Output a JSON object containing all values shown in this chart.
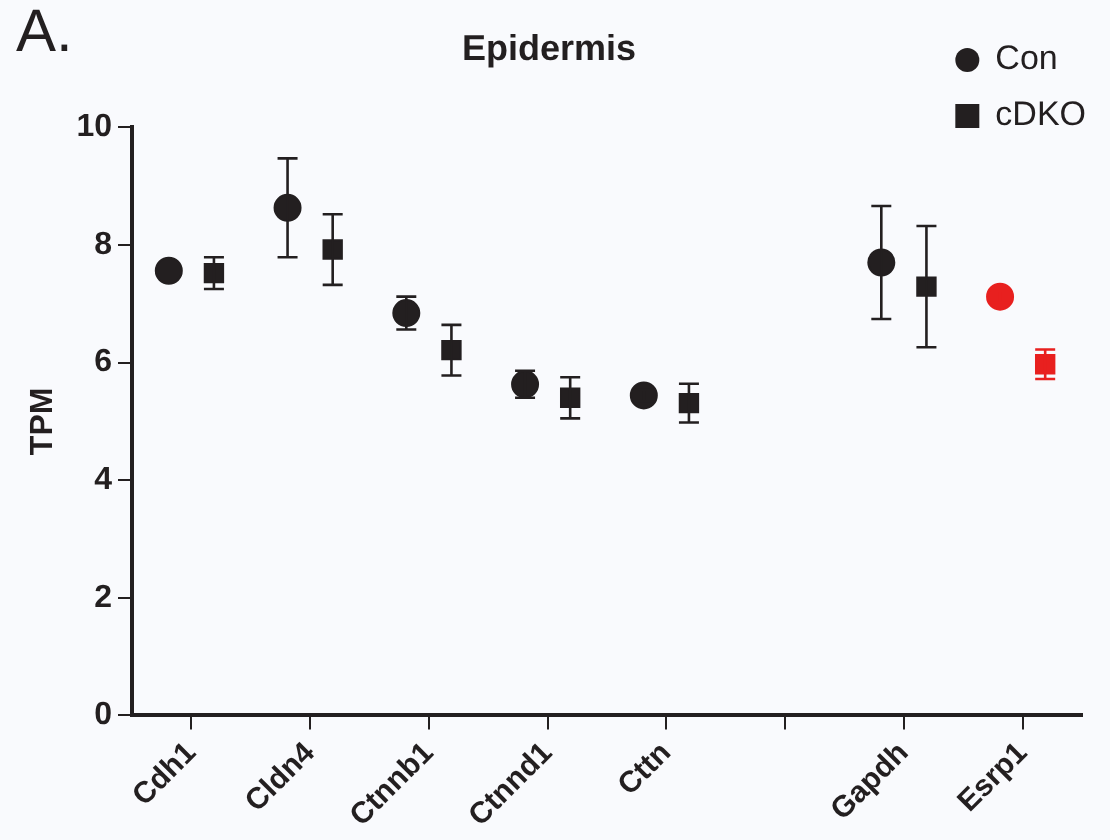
{
  "chart_data": {
    "type": "scatter",
    "title": "Epidermis",
    "ylabel": "TPM",
    "categories": [
      "Cdh1",
      "Cldn4",
      "Ctnnb1",
      "Ctnnd1",
      "Cttn",
      null,
      "Gapdh",
      "Esrp1"
    ],
    "series": [
      {
        "name": "Con",
        "color": "#231f20",
        "marker": "circle",
        "colors": [
          "#231f20",
          "#231f20",
          "#231f20",
          "#231f20",
          "#231f20",
          null,
          "#231f20",
          "#e8201f"
        ],
        "values": [
          7.56,
          8.63,
          6.84,
          5.63,
          5.44,
          null,
          7.7,
          7.12
        ],
        "errors": [
          null,
          0.84,
          0.28,
          0.23,
          0.1,
          null,
          0.96,
          0.1
        ]
      },
      {
        "name": "cDKO",
        "color": "#231f20",
        "marker": "square",
        "colors": [
          "#231f20",
          "#231f20",
          "#231f20",
          "#231f20",
          "#231f20",
          null,
          "#231f20",
          "#e8201f"
        ],
        "values": [
          7.52,
          7.92,
          6.21,
          5.4,
          5.31,
          null,
          7.29,
          5.97
        ],
        "errors": [
          0.27,
          0.6,
          0.43,
          0.35,
          0.33,
          null,
          1.03,
          0.25
        ]
      }
    ],
    "ylim": [
      0,
      10
    ],
    "yticks": [
      0,
      2,
      4,
      6,
      8,
      10
    ],
    "grid": false,
    "legend": "top right",
    "annotations": [
      "A."
    ]
  }
}
